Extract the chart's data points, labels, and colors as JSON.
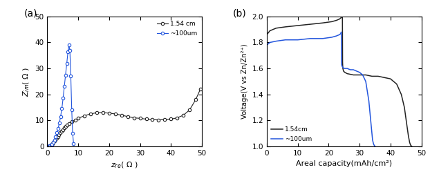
{
  "nyquist_black_x": [
    0.3,
    0.5,
    0.7,
    0.9,
    1.1,
    1.3,
    1.5,
    1.7,
    2.0,
    2.3,
    2.6,
    3.0,
    3.4,
    3.8,
    4.2,
    4.6,
    5.0,
    5.5,
    6.0,
    6.5,
    7.0,
    8.0,
    9.0,
    10.0,
    12.0,
    14.0,
    16.0,
    18.0,
    20.0,
    22.0,
    24.0,
    26.0,
    28.0,
    30.0,
    32.0,
    34.0,
    36.0,
    38.0,
    40.0,
    42.0,
    44.0,
    46.0,
    48.0,
    49.5
  ],
  "nyquist_black_y": [
    0.05,
    0.08,
    0.12,
    0.2,
    0.3,
    0.5,
    0.7,
    1.0,
    1.5,
    2.0,
    2.6,
    3.2,
    3.8,
    4.5,
    5.2,
    5.8,
    6.5,
    7.2,
    7.8,
    8.3,
    8.8,
    9.5,
    10.2,
    10.8,
    11.8,
    12.5,
    13.0,
    13.0,
    12.8,
    12.5,
    12.0,
    11.5,
    11.0,
    10.8,
    10.5,
    10.3,
    10.2,
    10.3,
    10.5,
    11.0,
    12.0,
    14.0,
    18.0,
    22.0
  ],
  "nyquist_blue_x": [
    0.2,
    0.4,
    0.6,
    0.9,
    1.2,
    1.5,
    1.9,
    2.3,
    2.7,
    3.1,
    3.5,
    3.9,
    4.3,
    4.7,
    5.1,
    5.5,
    5.9,
    6.3,
    6.7,
    7.0,
    7.3,
    7.6,
    7.9,
    8.2,
    8.5
  ],
  "nyquist_blue_y": [
    0.02,
    0.05,
    0.1,
    0.2,
    0.4,
    0.8,
    1.5,
    2.5,
    3.8,
    5.2,
    7.0,
    9.0,
    11.5,
    14.5,
    18.5,
    23.0,
    27.5,
    32.0,
    36.5,
    39.0,
    37.0,
    27.0,
    14.0,
    5.0,
    1.0
  ],
  "galv_black_x": [
    0.0,
    1.0,
    3.0,
    6.0,
    10.0,
    14.0,
    18.0,
    21.0,
    22.5,
    23.5,
    24.0,
    24.3,
    24.45,
    24.5,
    24.55,
    24.6,
    24.8,
    25.2,
    26.0,
    28.0,
    30.0,
    32.0,
    34.0,
    36.0,
    38.0,
    40.0,
    42.0,
    43.5,
    44.5,
    45.2,
    45.8,
    46.2,
    46.5,
    46.7,
    46.8,
    46.85,
    46.9
  ],
  "galv_black_y": [
    1.86,
    1.89,
    1.91,
    1.92,
    1.93,
    1.94,
    1.95,
    1.96,
    1.97,
    1.98,
    1.99,
    2.0,
    1.99,
    1.65,
    1.62,
    1.6,
    1.58,
    1.57,
    1.56,
    1.55,
    1.55,
    1.55,
    1.54,
    1.54,
    1.53,
    1.52,
    1.48,
    1.4,
    1.3,
    1.18,
    1.08,
    1.03,
    1.01,
    1.005,
    1.002,
    1.001,
    1.0
  ],
  "galv_blue_x": [
    0.0,
    1.0,
    3.0,
    6.0,
    10.0,
    14.0,
    18.0,
    21.0,
    22.5,
    23.5,
    24.0,
    24.05,
    24.1,
    24.15,
    24.2,
    24.3,
    24.5,
    25.0,
    26.0,
    27.0,
    28.0,
    29.0,
    30.0,
    31.0,
    32.0,
    33.0,
    33.8,
    34.2,
    34.5,
    34.7,
    34.85,
    34.9,
    35.0
  ],
  "galv_blue_y": [
    1.78,
    1.8,
    1.81,
    1.82,
    1.82,
    1.83,
    1.83,
    1.84,
    1.85,
    1.86,
    1.87,
    1.88,
    1.87,
    1.65,
    1.63,
    1.62,
    1.61,
    1.6,
    1.6,
    1.59,
    1.59,
    1.58,
    1.57,
    1.55,
    1.5,
    1.35,
    1.15,
    1.05,
    1.02,
    1.01,
    1.005,
    1.002,
    1.0
  ],
  "nyquist_xlabel": "z_re( Ω )",
  "nyquist_ylabel": "Z_im( Ω )",
  "nyquist_xlim": [
    0,
    50
  ],
  "nyquist_ylim": [
    0,
    50
  ],
  "nyquist_xticks": [
    0,
    10,
    20,
    30,
    40,
    50
  ],
  "nyquist_yticks": [
    0,
    10,
    20,
    30,
    40,
    50
  ],
  "galv_xlabel": "Areal capacity(mAh/cm²)",
  "galv_ylabel": "Voltage(V vs Zn/Zn²⁺)",
  "galv_xlim": [
    0,
    50
  ],
  "galv_ylim": [
    1.0,
    2.0
  ],
  "galv_xticks": [
    0,
    10,
    20,
    30,
    40,
    50
  ],
  "galv_yticks": [
    1.0,
    1.2,
    1.4,
    1.6,
    1.8,
    2.0
  ],
  "label_154cm": "1.54 cm",
  "label_100um": "~100um",
  "label_154cm_b": "1.54cm",
  "label_100um_b": "~100um",
  "color_black": "#222222",
  "color_blue": "#2255dd",
  "panel_a": "(a)",
  "panel_b": "(b)",
  "bg_color": "#ffffff"
}
